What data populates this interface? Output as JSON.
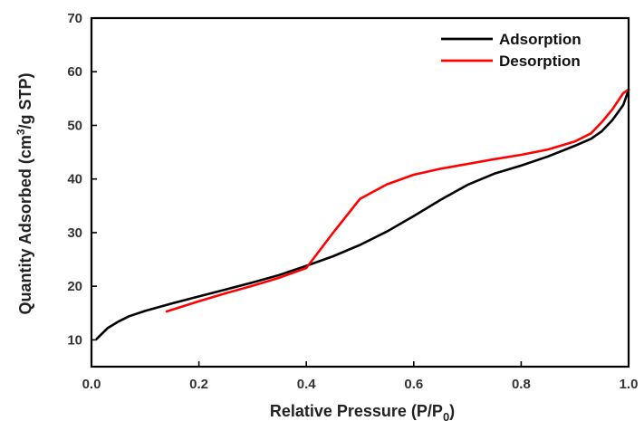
{
  "chart_data": {
    "type": "line",
    "xlabel": "Relative Pressure (P/P",
    "xlabel_sub": "0",
    "xlabel_end": ")",
    "ylabel": "Quantity Adsorbed (cm",
    "ylabel_sup": "3",
    "ylabel_end": "/g STP)",
    "xlim": [
      0.0,
      1.0
    ],
    "ylim": [
      5,
      70
    ],
    "x_ticks": [
      "0.0",
      "0.2",
      "0.4",
      "0.6",
      "0.8",
      "1.0"
    ],
    "y_ticks": [
      "10",
      "20",
      "30",
      "40",
      "50",
      "60",
      "70"
    ],
    "grid": false,
    "legend_position": "top-right",
    "series": [
      {
        "name": "Adsorption",
        "color": "#000000",
        "x": [
          0.01,
          0.03,
          0.05,
          0.07,
          0.1,
          0.15,
          0.2,
          0.25,
          0.3,
          0.35,
          0.4,
          0.45,
          0.5,
          0.55,
          0.6,
          0.65,
          0.7,
          0.75,
          0.8,
          0.85,
          0.9,
          0.93,
          0.95,
          0.97,
          0.99,
          1.0
        ],
        "y": [
          10.2,
          12.2,
          13.4,
          14.4,
          15.4,
          16.8,
          18.1,
          19.4,
          20.7,
          22.1,
          23.8,
          25.6,
          27.7,
          30.2,
          33.1,
          36.1,
          38.9,
          41.0,
          42.5,
          44.2,
          46.2,
          47.5,
          48.9,
          51.0,
          53.8,
          56.6
        ]
      },
      {
        "name": "Desorption",
        "color": "#ff0000",
        "x": [
          0.14,
          0.2,
          0.25,
          0.3,
          0.35,
          0.4,
          0.45,
          0.5,
          0.55,
          0.6,
          0.65,
          0.7,
          0.75,
          0.8,
          0.85,
          0.9,
          0.93,
          0.95,
          0.97,
          0.99,
          1.0
        ],
        "y": [
          15.3,
          17.2,
          18.7,
          20.1,
          21.6,
          23.4,
          30.0,
          36.3,
          39.0,
          40.8,
          41.9,
          42.8,
          43.7,
          44.5,
          45.5,
          47.0,
          48.5,
          50.6,
          53.0,
          56.0,
          56.7
        ]
      }
    ]
  }
}
